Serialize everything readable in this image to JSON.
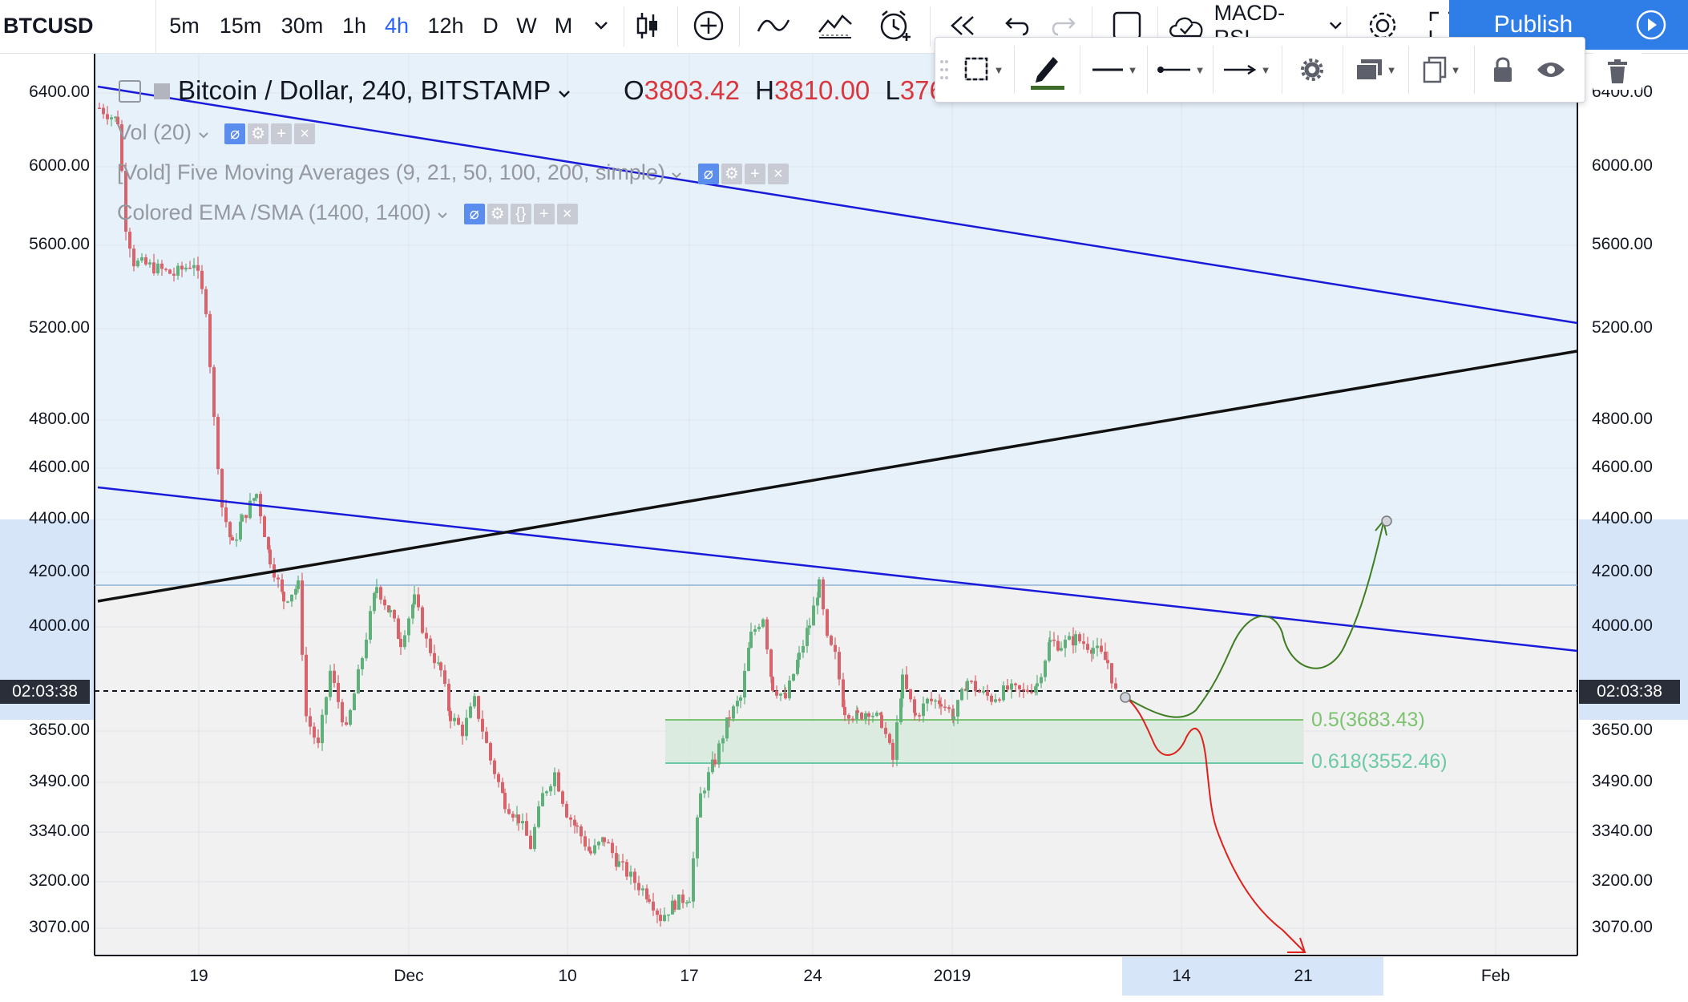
{
  "toolbar": {
    "symbol": "BTCUSD",
    "intervals": [
      "5m",
      "15m",
      "30m",
      "1h",
      "4h",
      "12h",
      "D",
      "W",
      "M"
    ],
    "active_interval": "4h",
    "indicators_label": "MACD-RSI",
    "publish_label": "Publish",
    "icons": [
      "chevron-down-icon",
      "candles-icon",
      "add-circle-icon",
      "line-chart-icon",
      "indicators-icon",
      "alert-icon",
      "replay-icon",
      "undo-icon",
      "redo-icon",
      "square-icon",
      "cloud-icon",
      "settings-icon",
      "fullscreen-icon",
      "play-icon"
    ]
  },
  "drawing_toolbar": {
    "icons": [
      "drag-handle-icon",
      "select-box-icon",
      "pencil-icon",
      "line-style-icon",
      "line-start-icon",
      "line-end-icon",
      "settings-icon",
      "layers-icon",
      "clone-icon",
      "lock-icon",
      "eye-icon",
      "trash-icon"
    ],
    "accent_color": "#3d6b2a"
  },
  "legend": {
    "title": "Bitcoin / Dollar, 240, BITSTAMP",
    "open_label": "O",
    "open": "3803.42",
    "high_label": "H",
    "high": "3810.00",
    "low_label": "L",
    "low": "376",
    "indicators": [
      "Vol (20)",
      "[Vold] Five Moving Averages (9, 21, 50, 100, 200, simple)",
      "Colored EMA /SMA (1400, 1400)"
    ]
  },
  "price_axis": {
    "labels": [
      "6400.00",
      "6000.00",
      "5600.00",
      "5200.00",
      "4800.00",
      "4600.00",
      "4400.00",
      "4200.00",
      "4000.00",
      "3650.00",
      "3490.00",
      "3340.00",
      "3200.00",
      "3070.00"
    ],
    "countdown": "02:03:38"
  },
  "time_axis": {
    "labels": [
      "19",
      "Dec",
      "10",
      "17",
      "24",
      "2019",
      "14",
      "21",
      "Feb"
    ]
  },
  "fib": {
    "level1": "0.5(3683.43)",
    "level2": "0.618(3552.46)",
    "color": "#7cc36f"
  },
  "colors": {
    "up": "#5fb07a",
    "down": "#d9636b",
    "trendline": "#1a1adb",
    "support": "#111111",
    "bull_path": "#3e7d22",
    "bear_path": "#e0201b",
    "bg_upper": "#e7f1f9",
    "bg_lower": "#f1f1f1"
  }
}
